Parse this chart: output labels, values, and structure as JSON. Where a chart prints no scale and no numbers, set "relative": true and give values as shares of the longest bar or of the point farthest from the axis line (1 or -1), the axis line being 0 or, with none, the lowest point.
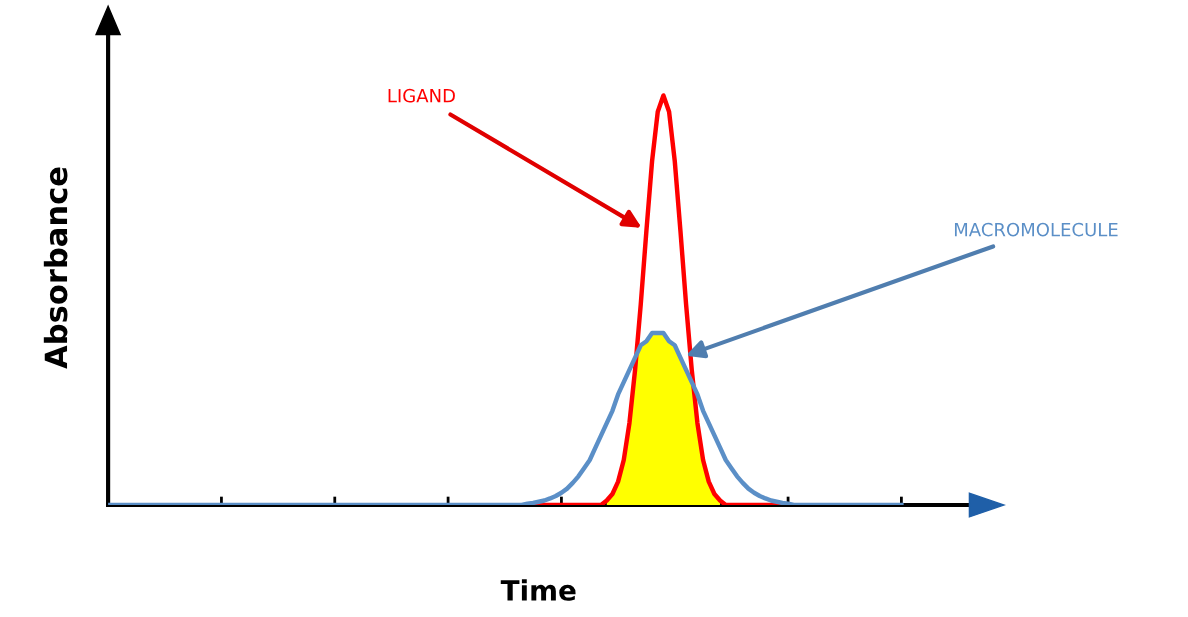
{
  "chart_data": {
    "type": "line",
    "relative": true,
    "xlabel": "Time",
    "ylabel": "Absorbance",
    "categories": [
      null,
      null,
      null,
      null,
      null,
      null,
      null,
      null,
      null,
      null,
      null,
      null,
      null,
      null,
      null,
      null,
      null,
      null,
      null,
      null,
      null,
      null,
      null,
      null,
      null,
      null,
      null,
      null,
      null,
      null,
      null,
      null,
      null,
      null,
      null,
      null,
      null,
      null,
      null,
      null,
      null,
      null,
      null,
      null,
      null,
      null,
      null,
      null,
      null,
      null,
      null,
      null,
      null,
      null,
      null,
      null,
      null,
      null,
      null,
      null,
      null,
      null,
      null,
      null,
      null,
      null,
      null,
      null,
      null,
      null,
      null,
      null,
      null,
      null,
      null,
      null,
      null,
      null,
      null,
      null,
      null,
      null,
      null,
      null,
      null,
      null,
      null,
      null,
      null,
      null,
      null,
      null,
      null,
      null,
      null,
      null,
      null,
      null,
      null,
      null,
      null,
      null,
      null,
      null,
      null,
      null,
      null,
      null,
      null,
      null,
      null,
      null,
      null,
      null,
      null,
      null,
      null,
      null,
      null,
      null,
      null,
      null,
      null,
      null,
      null,
      null,
      null,
      null,
      null,
      null,
      null,
      null,
      null,
      null,
      null,
      null,
      null,
      null,
      null,
      null,
      null
    ],
    "series": [
      {
        "color": "#ff0000",
        "values": [
          null,
          null,
          null,
          null,
          null,
          null,
          null,
          null,
          null,
          null,
          null,
          null,
          null,
          null,
          null,
          null,
          null,
          null,
          null,
          null,
          null,
          null,
          null,
          null,
          null,
          null,
          null,
          null,
          null,
          null,
          null,
          null,
          null,
          null,
          null,
          null,
          null,
          null,
          null,
          null,
          null,
          null,
          null,
          null,
          null,
          null,
          null,
          null,
          null,
          null,
          null,
          null,
          null,
          null,
          null,
          null,
          null,
          null,
          null,
          null,
          null,
          null,
          null,
          null,
          null,
          null,
          null,
          null,
          null,
          null,
          null,
          null,
          null,
          null,
          0,
          0,
          0,
          0,
          0,
          0,
          0,
          0,
          0,
          0,
          0,
          0,
          0,
          0,
          0.011,
          0.027,
          0.057,
          0.11,
          0.2,
          0.33,
          0.49,
          0.67,
          0.84,
          0.96,
          1,
          0.96,
          0.84,
          0.67,
          0.49,
          0.33,
          0.2,
          0.11,
          0.057,
          0.027,
          0.011,
          0,
          0,
          0,
          0,
          0,
          0,
          0,
          0,
          0,
          0,
          0,
          0,
          null,
          null,
          null,
          null,
          null,
          null,
          null,
          null,
          null,
          null,
          null,
          null,
          null,
          null,
          null,
          null,
          null,
          null,
          null,
          null
        ]
      },
      {
        "color": "#5b8fc7",
        "values": [
          0,
          0,
          0,
          0,
          0,
          0,
          0,
          0,
          0,
          0,
          0,
          0,
          0,
          0,
          0,
          0,
          0,
          0,
          0,
          0,
          0,
          0,
          0,
          0,
          0,
          0,
          0,
          0,
          0,
          0,
          0,
          0,
          0,
          0,
          0,
          0,
          0,
          0,
          0,
          0,
          0,
          0,
          0,
          0,
          0,
          0,
          0,
          0,
          0,
          0,
          0,
          0,
          0,
          0,
          0,
          0,
          0,
          0,
          0,
          0,
          0,
          0,
          0,
          0,
          0,
          0,
          0,
          0,
          0,
          0,
          0,
          0,
          0,
          0,
          0.003,
          0.005,
          0.008,
          0.011,
          0.016,
          0.022,
          0.03,
          0.04,
          0.054,
          0.07,
          0.09,
          0.11,
          0.14,
          0.17,
          0.2,
          0.23,
          0.27,
          0.3,
          0.33,
          0.36,
          0.39,
          0.4,
          0.42,
          0.42,
          0.42,
          0.4,
          0.39,
          0.36,
          0.33,
          0.3,
          0.27,
          0.23,
          0.2,
          0.17,
          0.14,
          0.11,
          0.09,
          0.07,
          0.054,
          0.04,
          0.03,
          0.022,
          0.016,
          0.011,
          0.008,
          0.005,
          0.003,
          0,
          0,
          0,
          0,
          0,
          0,
          0,
          0,
          0,
          0,
          0,
          0,
          0,
          0,
          0,
          0,
          0,
          0,
          0,
          0
        ]
      }
    ],
    "annotations": [
      "LIGAND",
      "MACROMOLECULE"
    ]
  }
}
